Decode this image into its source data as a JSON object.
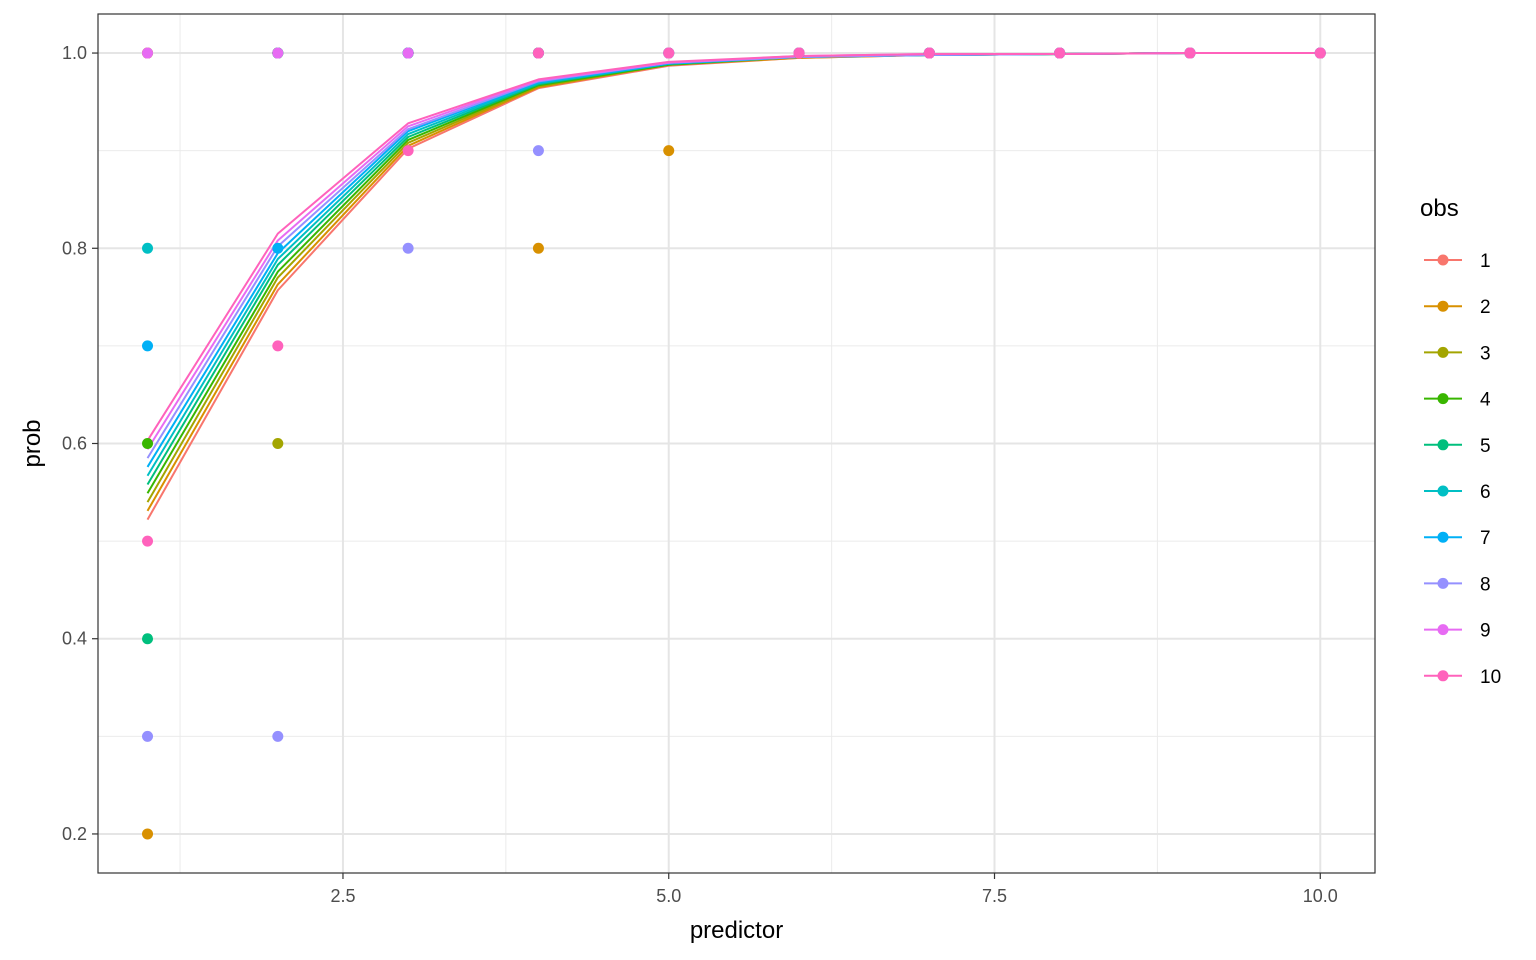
{
  "chart_data": {
    "type": "line",
    "xlabel": "predictor",
    "ylabel": "prob",
    "xlim": [
      0.62,
      10.42
    ],
    "ylim": [
      0.16,
      1.04
    ],
    "xticks": [
      2.5,
      5.0,
      7.5,
      10.0
    ],
    "xtick_labels": [
      "2.5",
      "5.0",
      "7.5",
      "10.0"
    ],
    "yticks": [
      0.2,
      0.4,
      0.6,
      0.8,
      1.0
    ],
    "ytick_labels": [
      "0.2",
      "0.4",
      "0.6",
      "0.8",
      "1.0"
    ],
    "x": [
      1,
      2,
      3,
      4,
      5,
      6,
      7,
      8,
      9,
      10
    ],
    "grid": true,
    "legend": {
      "title": "obs",
      "position": "right"
    },
    "series": [
      {
        "name": "1",
        "color": "#F8766D",
        "line": [
          0.522,
          0.757,
          0.902,
          0.964,
          0.987,
          0.995,
          0.998,
          0.999,
          1.0,
          1.0
        ],
        "points": [
          1.0,
          1.0,
          1.0,
          1.0,
          1.0,
          1.0,
          1.0,
          1.0,
          1.0,
          1.0
        ]
      },
      {
        "name": "2",
        "color": "#D89000",
        "line": [
          0.531,
          0.763,
          0.905,
          0.965,
          0.988,
          0.995,
          0.998,
          0.999,
          1.0,
          1.0
        ],
        "points": [
          0.2,
          1.0,
          1.0,
          0.8,
          0.9,
          1.0,
          1.0,
          1.0,
          1.0,
          1.0
        ]
      },
      {
        "name": "3",
        "color": "#A3A500",
        "line": [
          0.54,
          0.77,
          0.908,
          0.966,
          0.988,
          0.996,
          0.998,
          0.999,
          1.0,
          1.0
        ],
        "points": [
          1.0,
          0.6,
          1.0,
          1.0,
          1.0,
          1.0,
          1.0,
          1.0,
          1.0,
          1.0
        ]
      },
      {
        "name": "4",
        "color": "#39B600",
        "line": [
          0.549,
          0.776,
          0.911,
          0.967,
          0.988,
          0.996,
          0.998,
          0.999,
          1.0,
          1.0
        ],
        "points": [
          0.6,
          1.0,
          1.0,
          1.0,
          1.0,
          1.0,
          1.0,
          1.0,
          1.0,
          1.0
        ]
      },
      {
        "name": "5",
        "color": "#00BF7D",
        "line": [
          0.558,
          0.783,
          0.914,
          0.968,
          0.989,
          0.996,
          0.998,
          0.999,
          1.0,
          1.0
        ],
        "points": [
          0.4,
          1.0,
          1.0,
          1.0,
          1.0,
          1.0,
          1.0,
          1.0,
          1.0,
          1.0
        ]
      },
      {
        "name": "6",
        "color": "#00BFC4",
        "line": [
          0.567,
          0.789,
          0.917,
          0.969,
          0.989,
          0.996,
          0.998,
          0.999,
          1.0,
          1.0
        ],
        "points": [
          0.8,
          1.0,
          1.0,
          1.0,
          1.0,
          1.0,
          1.0,
          1.0,
          1.0,
          1.0
        ]
      },
      {
        "name": "7",
        "color": "#00B0F6",
        "line": [
          0.576,
          0.795,
          0.92,
          0.97,
          0.989,
          0.996,
          0.998,
          0.999,
          1.0,
          1.0
        ],
        "points": [
          0.7,
          0.8,
          1.0,
          1.0,
          1.0,
          1.0,
          1.0,
          1.0,
          1.0,
          1.0
        ]
      },
      {
        "name": "8",
        "color": "#9590FF",
        "line": [
          0.585,
          0.802,
          0.922,
          0.971,
          0.99,
          0.996,
          0.998,
          0.999,
          1.0,
          1.0
        ],
        "points": [
          0.3,
          0.3,
          0.8,
          0.9,
          1.0,
          1.0,
          1.0,
          1.0,
          1.0,
          1.0
        ]
      },
      {
        "name": "9",
        "color": "#E76BF3",
        "line": [
          0.594,
          0.808,
          0.925,
          0.972,
          0.99,
          0.997,
          0.999,
          0.999,
          1.0,
          1.0
        ],
        "points": [
          1.0,
          1.0,
          1.0,
          1.0,
          1.0,
          1.0,
          1.0,
          1.0,
          1.0,
          1.0
        ]
      },
      {
        "name": "10",
        "color": "#FF62BC",
        "line": [
          0.603,
          0.815,
          0.928,
          0.973,
          0.991,
          0.997,
          0.999,
          0.999,
          1.0,
          1.0
        ],
        "points": [
          0.5,
          0.7,
          0.9,
          1.0,
          1.0,
          1.0,
          1.0,
          1.0,
          1.0,
          1.0
        ]
      }
    ]
  }
}
